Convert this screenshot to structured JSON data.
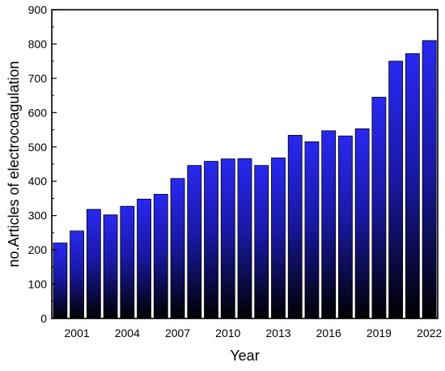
{
  "chart_data": {
    "type": "bar",
    "title": "",
    "xlabel": "Year",
    "ylabel": "no.Articles of electrocoagulation",
    "x": [
      2000,
      2001,
      2002,
      2003,
      2004,
      2005,
      2006,
      2007,
      2008,
      2009,
      2010,
      2011,
      2012,
      2013,
      2014,
      2015,
      2016,
      2017,
      2018,
      2019,
      2020,
      2021,
      2022
    ],
    "values": [
      220,
      255,
      318,
      302,
      327,
      348,
      362,
      408,
      446,
      458,
      465,
      466,
      446,
      468,
      534,
      515,
      547,
      532,
      553,
      645,
      750,
      772,
      810
    ],
    "ylim": [
      0,
      900
    ],
    "yticks": [
      0,
      100,
      200,
      300,
      400,
      500,
      600,
      700,
      800,
      900
    ],
    "xtick_labels": [
      "2001",
      "2004",
      "2007",
      "2010",
      "2013",
      "2016",
      "2019",
      "2022"
    ],
    "bar_gradient": [
      "#2a2aff",
      "#000000"
    ],
    "grid": false,
    "legend": "none"
  }
}
